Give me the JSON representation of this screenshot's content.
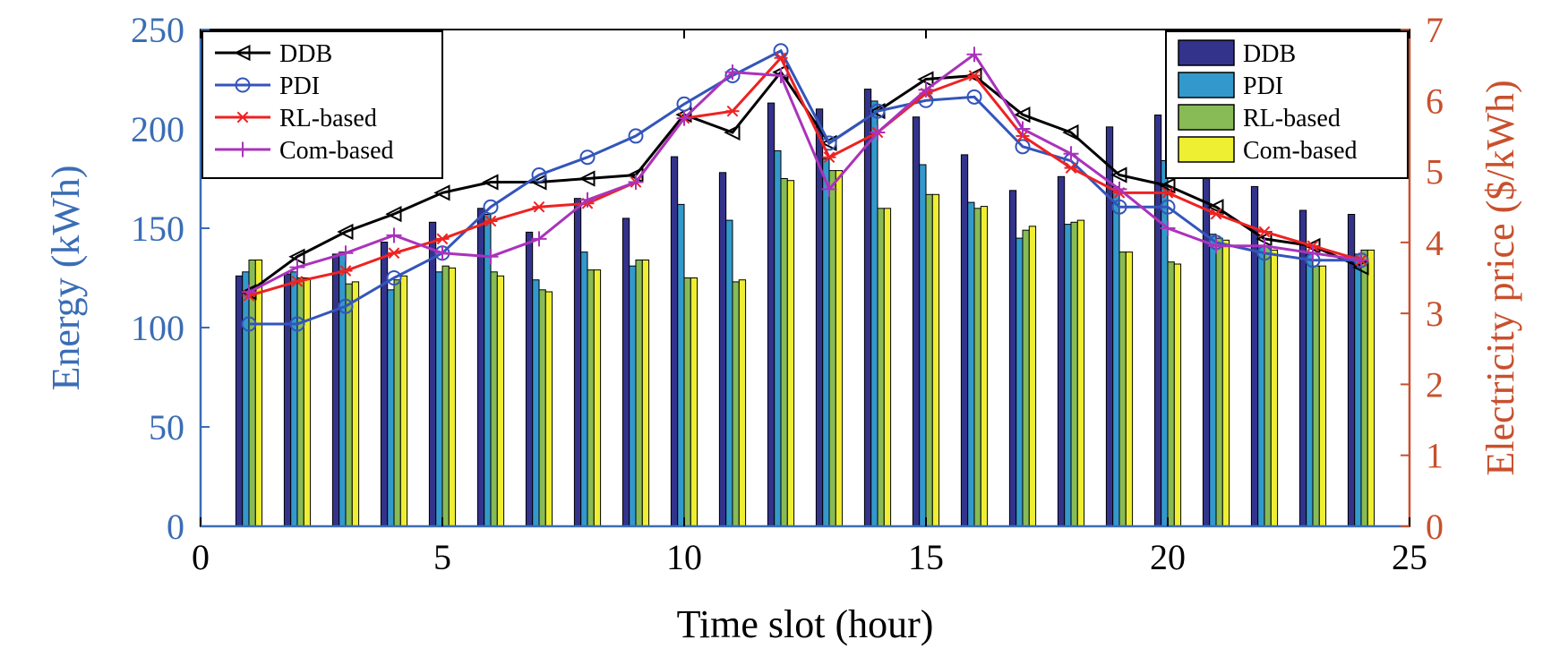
{
  "chart_data": {
    "type": "bar+line",
    "xlabel": "Time slot (hour)",
    "ylabel_left": "Energy (kWh)",
    "ylabel_right": "Electricity price ($/kWh)",
    "xlim": [
      0,
      25
    ],
    "ylim_left": [
      0,
      250
    ],
    "ylim_right": [
      0,
      7
    ],
    "x_ticks": [
      "0",
      "5",
      "10",
      "15",
      "20",
      "25"
    ],
    "y_left_ticks": [
      "0",
      "50",
      "100",
      "150",
      "200",
      "250"
    ],
    "y_right_ticks": [
      "0",
      "1",
      "2",
      "3",
      "4",
      "5",
      "6",
      "7"
    ],
    "x": [
      1,
      2,
      3,
      4,
      5,
      6,
      7,
      8,
      9,
      10,
      11,
      12,
      13,
      14,
      15,
      16,
      17,
      18,
      19,
      20,
      21,
      22,
      23,
      24
    ],
    "bar_series": [
      {
        "name": "DDB",
        "color": "#33338c",
        "values": [
          126,
          127,
          137,
          143,
          153,
          160,
          148,
          165,
          155,
          186,
          178,
          213,
          210,
          220,
          206,
          187,
          169,
          176,
          201,
          207,
          182,
          171,
          159,
          157
        ]
      },
      {
        "name": "PDI",
        "color": "#3399cc",
        "values": [
          128,
          128,
          138,
          119,
          128,
          157,
          124,
          138,
          131,
          162,
          154,
          189,
          185,
          214,
          182,
          163,
          145,
          152,
          171,
          184,
          147,
          141,
          137,
          137
        ]
      },
      {
        "name": "RL-based",
        "color": "#88bb55",
        "values": [
          134,
          125,
          122,
          124,
          131,
          128,
          119,
          129,
          134,
          125,
          123,
          175,
          179,
          160,
          167,
          160,
          149,
          153,
          138,
          133,
          145,
          141,
          131,
          139
        ]
      },
      {
        "name": "Com-based",
        "color": "#eeee33",
        "values": [
          134,
          125,
          123,
          126,
          130,
          126,
          118,
          129,
          134,
          125,
          124,
          174,
          179,
          160,
          167,
          161,
          151,
          154,
          138,
          132,
          144,
          139,
          131,
          139
        ]
      }
    ],
    "line_series": [
      {
        "name": "DDB",
        "color": "#000000",
        "marker": "triangle-left",
        "values": [
          3.3,
          3.8,
          4.15,
          4.4,
          4.7,
          4.85,
          4.85,
          4.9,
          4.95,
          5.8,
          5.55,
          6.4,
          5.4,
          5.85,
          6.3,
          6.35,
          5.8,
          5.55,
          4.95,
          4.8,
          4.5,
          4.05,
          3.95,
          3.65
        ]
      },
      {
        "name": "PDI",
        "color": "#3355bb",
        "marker": "circle",
        "values": [
          2.85,
          2.85,
          3.1,
          3.5,
          3.85,
          4.5,
          4.95,
          5.2,
          5.5,
          5.95,
          6.35,
          6.7,
          5.4,
          5.85,
          6.0,
          6.05,
          5.35,
          5.15,
          4.5,
          4.5,
          4.0,
          3.85,
          3.75,
          3.75
        ]
      },
      {
        "name": "RL-based",
        "color": "#ee2222",
        "marker": "asterisk",
        "values": [
          3.25,
          3.45,
          3.6,
          3.85,
          4.05,
          4.3,
          4.5,
          4.55,
          4.85,
          5.75,
          5.85,
          6.6,
          5.2,
          5.55,
          6.1,
          6.35,
          5.5,
          5.05,
          4.7,
          4.7,
          4.4,
          4.15,
          3.95,
          3.75
        ]
      },
      {
        "name": "Com-based",
        "color": "#aa33bb",
        "marker": "plus",
        "values": [
          3.3,
          3.65,
          3.85,
          4.1,
          3.85,
          3.8,
          4.05,
          4.6,
          4.85,
          5.75,
          6.4,
          6.35,
          4.75,
          5.55,
          6.15,
          6.65,
          5.6,
          5.25,
          4.75,
          4.2,
          3.95,
          3.95,
          3.85,
          3.75
        ]
      }
    ],
    "legend_lines_position": "top-left",
    "legend_bars_position": "top-right",
    "left_axis_color": "#3a6db5",
    "right_axis_color": "#c8502d",
    "grid": false
  }
}
